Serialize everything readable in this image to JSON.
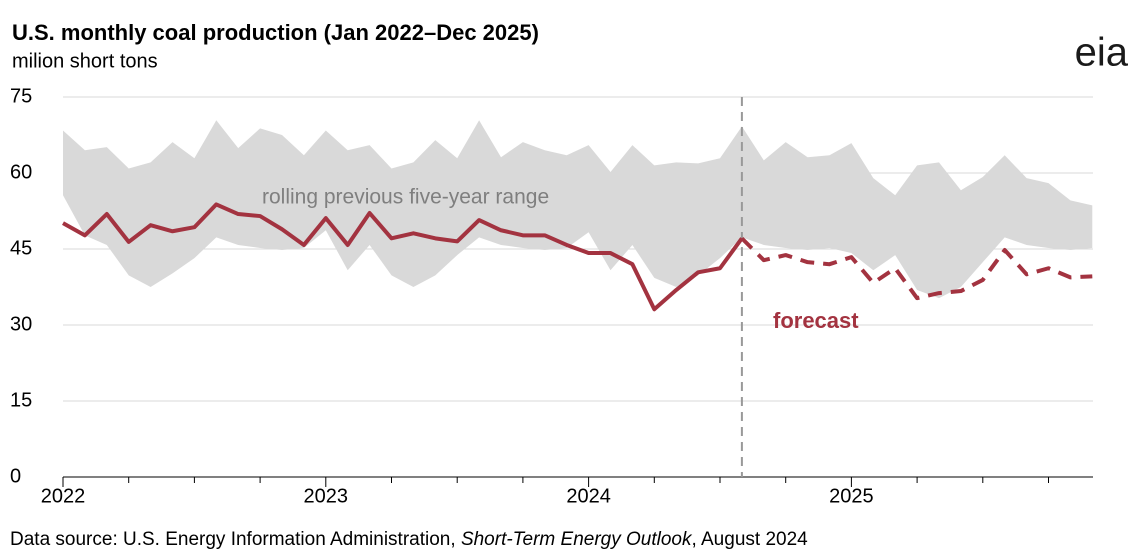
{
  "logo": "eia",
  "chart_data": {
    "type": "line",
    "title": "U.S. monthly coal production (Jan 2022–Dec 2025)",
    "subtitle": "milion short tons",
    "source": [
      "Data source: U.S. Energy Information Administration, ",
      "Short-Term Energy Outlook",
      ", August 2024"
    ],
    "categories": [
      "2022",
      null,
      null,
      null,
      null,
      null,
      null,
      null,
      null,
      null,
      null,
      null,
      "2023",
      null,
      null,
      null,
      null,
      null,
      null,
      null,
      null,
      null,
      null,
      null,
      "2024",
      null,
      null,
      null,
      null,
      null,
      null,
      null,
      null,
      null,
      null,
      null,
      "2025",
      null,
      null,
      null,
      null,
      null,
      null,
      null,
      null,
      null,
      null,
      null
    ],
    "ylim": [
      0,
      75
    ],
    "yticks": [
      0,
      15,
      30,
      45,
      60,
      75
    ],
    "grid": true,
    "band": {
      "color": "#d9d9d9",
      "upper": [
        68.4,
        64.5,
        65.1,
        60.9,
        62.1,
        66.1,
        62.9,
        70.4,
        64.9,
        68.8,
        67.5,
        63.5,
        68.4,
        64.5,
        65.5,
        60.9,
        62.1,
        66.5,
        62.9,
        70.4,
        63.1,
        66.1,
        64.5,
        63.5,
        65.5,
        60.2,
        65.5,
        61.5,
        62.1,
        61.9,
        62.9,
        69.2,
        62.5,
        66.1,
        63.1,
        63.5,
        65.9,
        59,
        55.6,
        61.5,
        62.1,
        56.6,
        59.2,
        63.5,
        59,
        58,
        54.6,
        53.6
      ],
      "lower": [
        55.6,
        47.7,
        45.8,
        39.8,
        37.5,
        40.2,
        43.2,
        47.3,
        45.8,
        45.2,
        44.8,
        45.2,
        48.7,
        40.8,
        45.8,
        39.8,
        37.5,
        39.8,
        43.8,
        47.3,
        45.8,
        45.2,
        44.8,
        45.2,
        48.3,
        40.8,
        45.8,
        39.3,
        37.5,
        39.8,
        43.2,
        47.3,
        45.8,
        45.2,
        44.8,
        45.2,
        44.2,
        40.8,
        43.8,
        36.9,
        35.3,
        37.5,
        42.4,
        47.3,
        45.8,
        45.2,
        44.8,
        45.2
      ]
    },
    "series": [
      {
        "color": "#a33340",
        "dash": false,
        "values": [
          50.1,
          47.7,
          51.9,
          46.4,
          49.7,
          48.5,
          49.3,
          53.8,
          51.9,
          51.5,
          48.9,
          45.8,
          51.1,
          45.8,
          52.1,
          47.1,
          48.1,
          47.1,
          46.5,
          50.7,
          48.7,
          47.7,
          47.7,
          45.8,
          44.2,
          44.2,
          42,
          33.1,
          36.9,
          40.4,
          41.2,
          47.1,
          null,
          null,
          null,
          null,
          null,
          null,
          null,
          null,
          null,
          null,
          null,
          null,
          null,
          null,
          null,
          null
        ]
      },
      {
        "color": "#a33340",
        "dash": true,
        "values": [
          null,
          null,
          null,
          null,
          null,
          null,
          null,
          null,
          null,
          null,
          null,
          null,
          null,
          null,
          null,
          null,
          null,
          null,
          null,
          null,
          null,
          null,
          null,
          null,
          null,
          null,
          null,
          null,
          null,
          null,
          null,
          47.1,
          42.8,
          43.8,
          42.4,
          42,
          43.4,
          38.3,
          41.2,
          35.3,
          36.3,
          36.7,
          38.9,
          44.8,
          40,
          41.2,
          39.4,
          39.6
        ]
      }
    ],
    "annotations": [
      {
        "text": "rolling previous five-year range",
        "color": "#7f7f7f"
      },
      {
        "text": "forecast",
        "color": "#a33340"
      }
    ]
  }
}
